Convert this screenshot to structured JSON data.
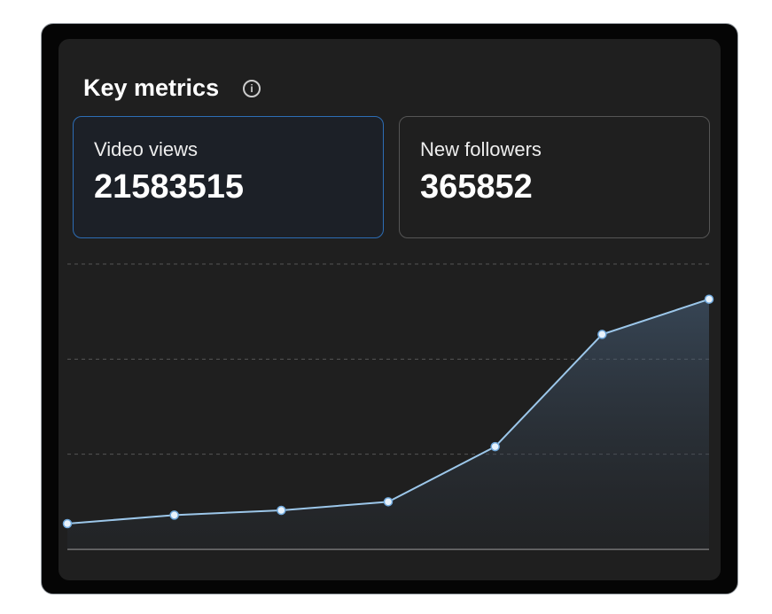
{
  "header": {
    "title": "Key metrics"
  },
  "metrics": [
    {
      "label": "Video views",
      "value": 21583515
    },
    {
      "label": "New followers",
      "value": 365852
    }
  ],
  "active_metric": 0,
  "chart_data": {
    "type": "line",
    "values": [
      0.27,
      0.36,
      0.41,
      0.5,
      1.08,
      2.26,
      2.63
    ],
    "color": "#9cc7ea",
    "ylim": [
      0,
      3
    ],
    "grid_lines": [
      0,
      1,
      2,
      3
    ]
  }
}
